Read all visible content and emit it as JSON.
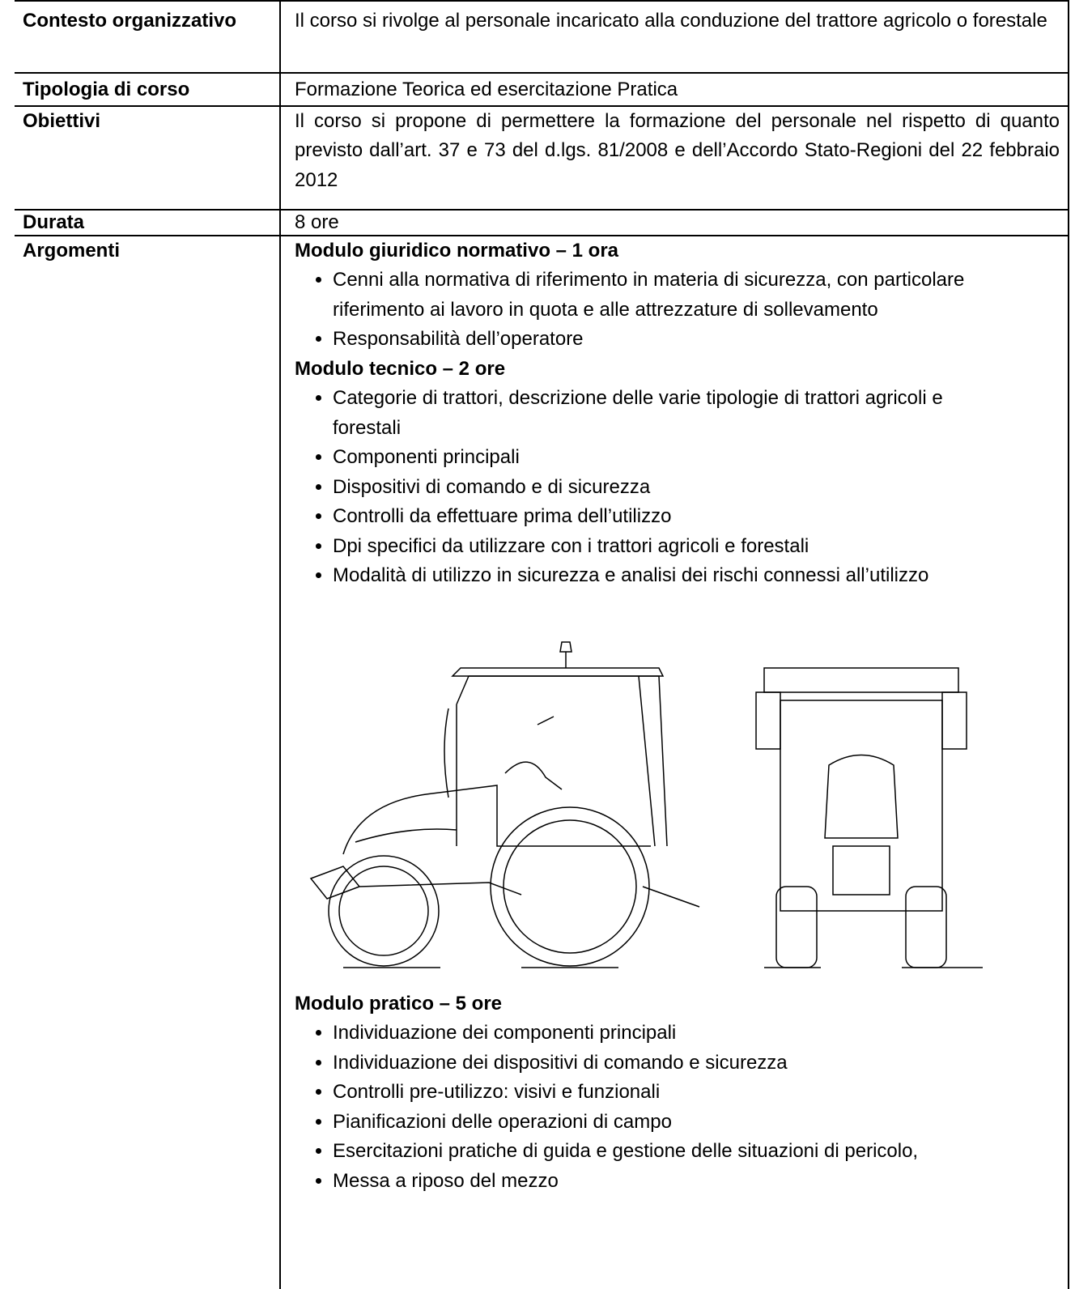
{
  "table": {
    "rows": [
      {
        "label": "Contesto organizzativo",
        "text": "Il corso si rivolge al personale incaricato alla conduzione del trattore agricolo o forestale"
      },
      {
        "label": "Tipologia di corso",
        "text": "Formazione Teorica ed esercitazione Pratica"
      },
      {
        "label": "Obiettivi",
        "text": "Il corso si propone di permettere la formazione del personale nel rispetto di quanto previsto dall’art. 37  e 73 del d.lgs. 81/2008 e dell’Accordo Stato-Regioni del 22 febbraio 2012"
      },
      {
        "label": "Durata",
        "text": "8  ore"
      }
    ],
    "topics": {
      "label": "Argomenti",
      "modules": [
        {
          "title": "Modulo giuridico normativo – 1 ora",
          "items": [
            "Cenni alla normativa di riferimento in materia di sicurezza, con particolare riferimento ai lavoro in quota e alle attrezzature di sollevamento",
            "Responsabilità dell’operatore"
          ]
        },
        {
          "title": "Modulo tecnico – 2 ore",
          "items": [
            " Categorie di trattori, descrizione delle varie tipologie di trattori agricoli e forestali",
            "Componenti principali",
            "Dispositivi di comando e di sicurezza",
            "Controlli da effettuare prima dell’utilizzo",
            "Dpi specifici da utilizzare con i trattori agricoli e forestali",
            "Modalità di utilizzo in sicurezza e analisi dei rischi connessi all’utilizzo"
          ]
        },
        {
          "title": "Modulo pratico – 5 ore",
          "items": [
            "Individuazione dei componenti principali",
            "Individuazione dei dispositivi di comando e sicurezza",
            " Controlli pre-utilizzo: visivi e funzionali",
            "Pianificazioni delle operazioni di campo",
            "Esercitazioni pratiche di guida e gestione delle situazioni di pericolo,",
            "Messa a riposo del mezzo"
          ]
        }
      ]
    }
  }
}
